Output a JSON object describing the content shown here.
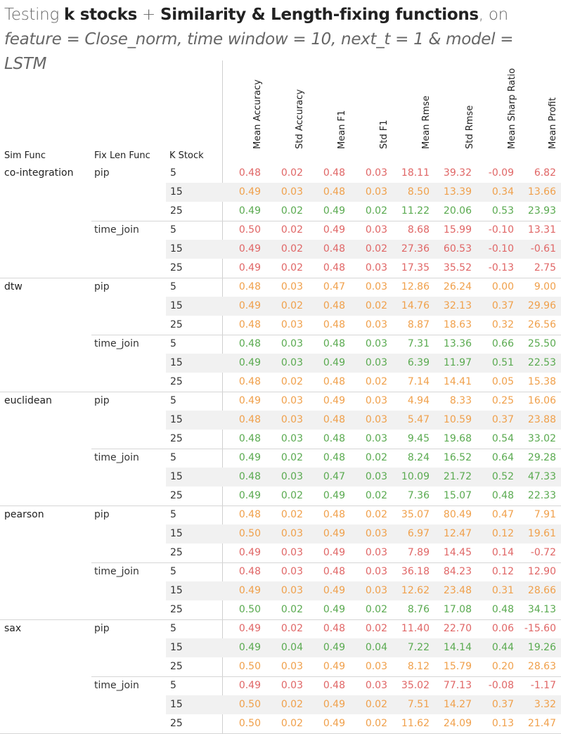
{
  "title": {
    "prefix": "Testing ",
    "bold1": "k stocks",
    "mid": " + ",
    "bold2": "Similarity & Length-fixing functions",
    "suffix": ", on ",
    "it1": "feature = Close_norm, time window = 10, next_t = 1 & model = LSTM"
  },
  "chart_data": {
    "type": "table",
    "row_headers": [
      "Sim Func",
      "Fix Len Func",
      "K Stock"
    ],
    "columns": [
      "Mean Accuracy",
      "Std Accuracy",
      "Mean F1",
      "Std F1",
      "Mean Rmse",
      "Std Rmse",
      "Mean Sharp Ratio",
      "Mean Profit"
    ],
    "groups": [
      {
        "sim": "co-integration",
        "fix": [
          {
            "name": "pip",
            "rows": [
              {
                "k": "5",
                "v": [
                  "0.48",
                  "0.02",
                  "0.48",
                  "0.03",
                  "18.11",
                  "39.32",
                  "-0.09",
                  "6.82"
                ],
                "c": "red"
              },
              {
                "k": "15",
                "v": [
                  "0.49",
                  "0.03",
                  "0.48",
                  "0.03",
                  "8.50",
                  "13.39",
                  "0.34",
                  "13.66"
                ],
                "c": "orange"
              },
              {
                "k": "25",
                "v": [
                  "0.49",
                  "0.02",
                  "0.49",
                  "0.02",
                  "11.22",
                  "20.06",
                  "0.53",
                  "23.93"
                ],
                "c": "green"
              }
            ]
          },
          {
            "name": "time_join",
            "rows": [
              {
                "k": "5",
                "v": [
                  "0.50",
                  "0.02",
                  "0.49",
                  "0.03",
                  "8.68",
                  "15.99",
                  "-0.10",
                  "13.31"
                ],
                "c": "red"
              },
              {
                "k": "15",
                "v": [
                  "0.49",
                  "0.02",
                  "0.48",
                  "0.02",
                  "27.36",
                  "60.53",
                  "-0.10",
                  "-0.61"
                ],
                "c": "red"
              },
              {
                "k": "25",
                "v": [
                  "0.49",
                  "0.02",
                  "0.48",
                  "0.03",
                  "17.35",
                  "35.52",
                  "-0.13",
                  "2.75"
                ],
                "c": "red"
              }
            ]
          }
        ]
      },
      {
        "sim": "dtw",
        "fix": [
          {
            "name": "pip",
            "rows": [
              {
                "k": "5",
                "v": [
                  "0.48",
                  "0.03",
                  "0.47",
                  "0.03",
                  "12.86",
                  "26.24",
                  "0.00",
                  "9.00"
                ],
                "c": "orange"
              },
              {
                "k": "15",
                "v": [
                  "0.49",
                  "0.02",
                  "0.48",
                  "0.02",
                  "14.76",
                  "32.13",
                  "0.37",
                  "29.96"
                ],
                "c": "orange"
              },
              {
                "k": "25",
                "v": [
                  "0.48",
                  "0.03",
                  "0.48",
                  "0.03",
                  "8.87",
                  "18.63",
                  "0.32",
                  "26.56"
                ],
                "c": "orange"
              }
            ]
          },
          {
            "name": "time_join",
            "rows": [
              {
                "k": "5",
                "v": [
                  "0.48",
                  "0.03",
                  "0.48",
                  "0.03",
                  "7.31",
                  "13.36",
                  "0.66",
                  "25.50"
                ],
                "c": "green"
              },
              {
                "k": "15",
                "v": [
                  "0.49",
                  "0.03",
                  "0.49",
                  "0.03",
                  "6.39",
                  "11.97",
                  "0.51",
                  "22.53"
                ],
                "c": "green"
              },
              {
                "k": "25",
                "v": [
                  "0.48",
                  "0.02",
                  "0.48",
                  "0.02",
                  "7.14",
                  "14.41",
                  "0.05",
                  "15.38"
                ],
                "c": "orange"
              }
            ]
          }
        ]
      },
      {
        "sim": "euclidean",
        "fix": [
          {
            "name": "pip",
            "rows": [
              {
                "k": "5",
                "v": [
                  "0.49",
                  "0.03",
                  "0.49",
                  "0.03",
                  "4.94",
                  "8.33",
                  "0.25",
                  "16.06"
                ],
                "c": "orange"
              },
              {
                "k": "15",
                "v": [
                  "0.48",
                  "0.03",
                  "0.48",
                  "0.03",
                  "5.47",
                  "10.59",
                  "0.37",
                  "23.88"
                ],
                "c": "orange"
              },
              {
                "k": "25",
                "v": [
                  "0.48",
                  "0.03",
                  "0.48",
                  "0.03",
                  "9.45",
                  "19.68",
                  "0.54",
                  "33.02"
                ],
                "c": "green"
              }
            ]
          },
          {
            "name": "time_join",
            "rows": [
              {
                "k": "5",
                "v": [
                  "0.49",
                  "0.02",
                  "0.48",
                  "0.02",
                  "8.24",
                  "16.52",
                  "0.64",
                  "29.28"
                ],
                "c": "green"
              },
              {
                "k": "15",
                "v": [
                  "0.48",
                  "0.03",
                  "0.47",
                  "0.03",
                  "10.09",
                  "21.72",
                  "0.52",
                  "47.33"
                ],
                "c": "green"
              },
              {
                "k": "25",
                "v": [
                  "0.49",
                  "0.02",
                  "0.49",
                  "0.02",
                  "7.36",
                  "15.07",
                  "0.48",
                  "22.33"
                ],
                "c": "green"
              }
            ]
          }
        ]
      },
      {
        "sim": "pearson",
        "fix": [
          {
            "name": "pip",
            "rows": [
              {
                "k": "5",
                "v": [
                  "0.48",
                  "0.02",
                  "0.48",
                  "0.02",
                  "35.07",
                  "80.49",
                  "0.47",
                  "7.91"
                ],
                "c": "orange"
              },
              {
                "k": "15",
                "v": [
                  "0.50",
                  "0.03",
                  "0.49",
                  "0.03",
                  "6.97",
                  "12.47",
                  "0.12",
                  "19.61"
                ],
                "c": "orange"
              },
              {
                "k": "25",
                "v": [
                  "0.49",
                  "0.03",
                  "0.49",
                  "0.03",
                  "7.89",
                  "14.45",
                  "0.14",
                  "-0.72"
                ],
                "c": "red"
              }
            ]
          },
          {
            "name": "time_join",
            "rows": [
              {
                "k": "5",
                "v": [
                  "0.48",
                  "0.03",
                  "0.48",
                  "0.03",
                  "36.18",
                  "84.23",
                  "0.12",
                  "12.90"
                ],
                "c": "red"
              },
              {
                "k": "15",
                "v": [
                  "0.49",
                  "0.03",
                  "0.49",
                  "0.03",
                  "12.62",
                  "23.48",
                  "0.31",
                  "28.66"
                ],
                "c": "orange"
              },
              {
                "k": "25",
                "v": [
                  "0.50",
                  "0.02",
                  "0.49",
                  "0.02",
                  "8.76",
                  "17.08",
                  "0.48",
                  "34.13"
                ],
                "c": "green"
              }
            ]
          }
        ]
      },
      {
        "sim": "sax",
        "fix": [
          {
            "name": "pip",
            "rows": [
              {
                "k": "5",
                "v": [
                  "0.49",
                  "0.02",
                  "0.48",
                  "0.02",
                  "11.40",
                  "22.70",
                  "0.06",
                  "-15.60"
                ],
                "c": "red"
              },
              {
                "k": "15",
                "v": [
                  "0.49",
                  "0.04",
                  "0.49",
                  "0.04",
                  "7.22",
                  "14.14",
                  "0.44",
                  "19.26"
                ],
                "c": "green"
              },
              {
                "k": "25",
                "v": [
                  "0.50",
                  "0.03",
                  "0.49",
                  "0.03",
                  "8.12",
                  "15.79",
                  "0.20",
                  "28.63"
                ],
                "c": "orange"
              }
            ]
          },
          {
            "name": "time_join",
            "rows": [
              {
                "k": "5",
                "v": [
                  "0.49",
                  "0.03",
                  "0.48",
                  "0.03",
                  "35.02",
                  "77.13",
                  "-0.08",
                  "-1.17"
                ],
                "c": "red"
              },
              {
                "k": "15",
                "v": [
                  "0.50",
                  "0.02",
                  "0.49",
                  "0.02",
                  "7.51",
                  "14.27",
                  "0.37",
                  "3.32"
                ],
                "c": "orange"
              },
              {
                "k": "25",
                "v": [
                  "0.50",
                  "0.02",
                  "0.49",
                  "0.02",
                  "11.62",
                  "24.09",
                  "0.13",
                  "21.47"
                ],
                "c": "orange"
              }
            ]
          }
        ]
      }
    ]
  }
}
